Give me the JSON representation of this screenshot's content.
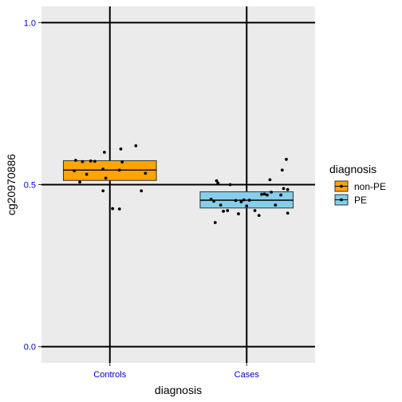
{
  "chart_data": {
    "type": "boxplot",
    "xlabel": "diagnosis",
    "ylabel": "cg20970886",
    "categories": [
      "Controls",
      "Cases"
    ],
    "ylim": [
      -0.05,
      1.05
    ],
    "yticks": [
      0.0,
      0.5,
      1.0
    ],
    "ytick_labels": [
      "0.0",
      "0.5",
      "1.0"
    ],
    "grid": true,
    "legend": {
      "title": "diagnosis",
      "position": "right",
      "entries": [
        {
          "label": "non-PE",
          "color": "#FFA500"
        },
        {
          "label": "PE",
          "color": "#87CEEB"
        }
      ]
    },
    "boxes": [
      {
        "category": "Controls",
        "group": "non-PE",
        "color": "#FFA500",
        "q1": 0.513,
        "median": 0.545,
        "q3": 0.574
      },
      {
        "category": "Cases",
        "group": "PE",
        "color": "#87CEEB",
        "q1": 0.428,
        "median": 0.452,
        "q3": 0.478
      }
    ],
    "points": [
      {
        "category": "Controls",
        "offset": -0.25,
        "value": 0.575
      },
      {
        "category": "Controls",
        "offset": -0.2,
        "value": 0.571
      },
      {
        "category": "Controls",
        "offset": -0.14,
        "value": 0.573
      },
      {
        "category": "Controls",
        "offset": -0.11,
        "value": 0.572
      },
      {
        "category": "Controls",
        "offset": -0.26,
        "value": 0.543
      },
      {
        "category": "Controls",
        "offset": -0.17,
        "value": 0.532
      },
      {
        "category": "Controls",
        "offset": -0.22,
        "value": 0.508
      },
      {
        "category": "Controls",
        "offset": -0.05,
        "value": 0.548
      },
      {
        "category": "Controls",
        "offset": -0.04,
        "value": 0.6
      },
      {
        "category": "Controls",
        "offset": -0.03,
        "value": 0.52
      },
      {
        "category": "Controls",
        "offset": -0.05,
        "value": 0.481
      },
      {
        "category": "Controls",
        "offset": 0.02,
        "value": 0.426
      },
      {
        "category": "Controls",
        "offset": 0.07,
        "value": 0.545
      },
      {
        "category": "Controls",
        "offset": 0.09,
        "value": 0.57
      },
      {
        "category": "Controls",
        "offset": 0.08,
        "value": 0.61
      },
      {
        "category": "Controls",
        "offset": 0.07,
        "value": 0.425
      },
      {
        "category": "Controls",
        "offset": 0.19,
        "value": 0.62
      },
      {
        "category": "Controls",
        "offset": 0.23,
        "value": 0.481
      },
      {
        "category": "Controls",
        "offset": 0.26,
        "value": 0.535
      },
      {
        "category": "Cases",
        "offset": -0.26,
        "value": 0.455
      },
      {
        "category": "Cases",
        "offset": -0.24,
        "value": 0.449
      },
      {
        "category": "Cases",
        "offset": -0.22,
        "value": 0.512
      },
      {
        "category": "Cases",
        "offset": -0.21,
        "value": 0.505
      },
      {
        "category": "Cases",
        "offset": -0.23,
        "value": 0.383
      },
      {
        "category": "Cases",
        "offset": -0.19,
        "value": 0.437
      },
      {
        "category": "Cases",
        "offset": -0.17,
        "value": 0.418
      },
      {
        "category": "Cases",
        "offset": -0.14,
        "value": 0.42
      },
      {
        "category": "Cases",
        "offset": -0.12,
        "value": 0.5
      },
      {
        "category": "Cases",
        "offset": -0.08,
        "value": 0.451
      },
      {
        "category": "Cases",
        "offset": -0.06,
        "value": 0.41
      },
      {
        "category": "Cases",
        "offset": -0.04,
        "value": 0.447
      },
      {
        "category": "Cases",
        "offset": -0.02,
        "value": 0.453
      },
      {
        "category": "Cases",
        "offset": 0.0,
        "value": 0.434
      },
      {
        "category": "Cases",
        "offset": 0.02,
        "value": 0.452
      },
      {
        "category": "Cases",
        "offset": 0.06,
        "value": 0.42
      },
      {
        "category": "Cases",
        "offset": 0.09,
        "value": 0.405
      },
      {
        "category": "Cases",
        "offset": 0.11,
        "value": 0.47
      },
      {
        "category": "Cases",
        "offset": 0.13,
        "value": 0.471
      },
      {
        "category": "Cases",
        "offset": 0.15,
        "value": 0.468
      },
      {
        "category": "Cases",
        "offset": 0.18,
        "value": 0.477
      },
      {
        "category": "Cases",
        "offset": 0.17,
        "value": 0.515
      },
      {
        "category": "Cases",
        "offset": 0.21,
        "value": 0.437
      },
      {
        "category": "Cases",
        "offset": 0.25,
        "value": 0.468
      },
      {
        "category": "Cases",
        "offset": 0.26,
        "value": 0.545
      },
      {
        "category": "Cases",
        "offset": 0.27,
        "value": 0.488
      },
      {
        "category": "Cases",
        "offset": 0.3,
        "value": 0.485
      },
      {
        "category": "Cases",
        "offset": 0.29,
        "value": 0.578
      },
      {
        "category": "Cases",
        "offset": 0.3,
        "value": 0.412
      }
    ]
  }
}
